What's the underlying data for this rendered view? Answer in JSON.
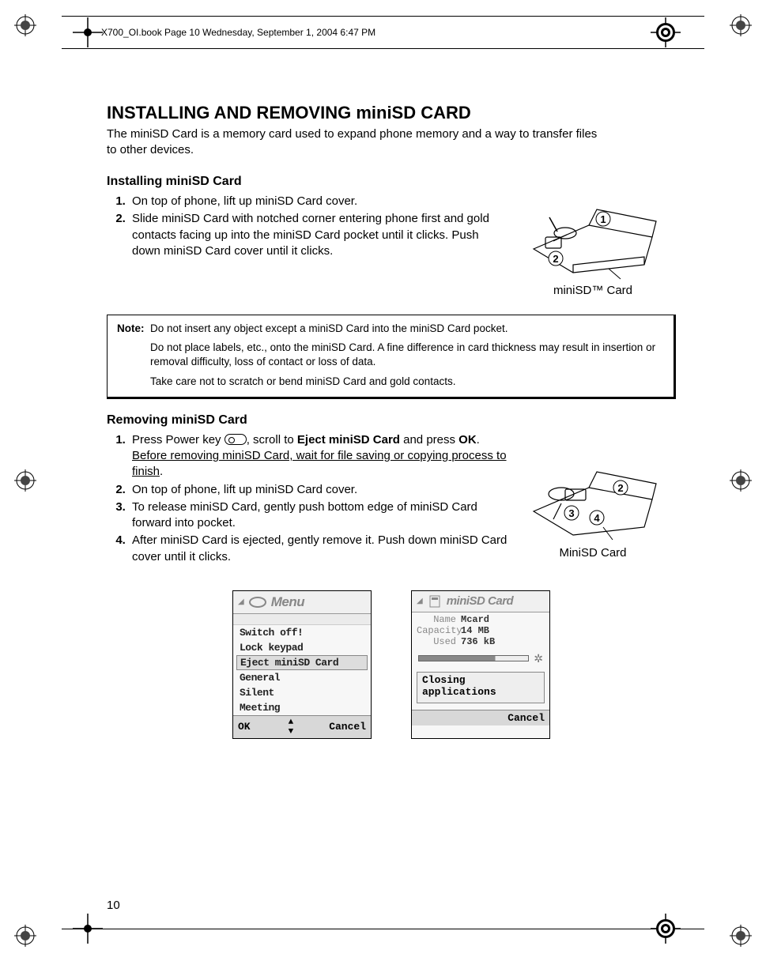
{
  "header": {
    "running_head": "X700_OI.book  Page 10  Wednesday, September 1, 2004  6:47 PM"
  },
  "page": {
    "number": "10",
    "title": "INSTALLING AND REMOVING miniSD CARD",
    "intro": "The miniSD Card is a memory card used to expand phone memory and a way to transfer files to other devices."
  },
  "install": {
    "heading": "Installing miniSD Card",
    "step1": "On top of phone, lift up miniSD Card cover.",
    "step2": "Slide miniSD Card with notched corner entering phone first and gold contacts facing up into the miniSD Card pocket until it clicks. Push down miniSD Card cover until it clicks.",
    "caption": "miniSD™ Card",
    "callouts": {
      "one": "1",
      "two": "2"
    }
  },
  "note": {
    "label": "Note",
    "line1": "Do not insert any object except a miniSD Card into the miniSD Card pocket.",
    "line2": "Do not place labels, etc., onto the miniSD Card. A fine difference in card thickness may result in insertion or removal difficulty, loss of contact or loss of data.",
    "line3": "Take care not to scratch or bend miniSD Card and gold contacts."
  },
  "remove": {
    "heading": "Removing miniSD Card",
    "step1_a": "Press Power key ",
    "step1_b": ", scroll to ",
    "step1_bold": "Eject miniSD Card",
    "step1_c": " and press ",
    "step1_ok": "OK",
    "step1_d": ". ",
    "step1_ul": "Before removing miniSD Card, wait for file saving or copying process to finish",
    "step1_e": ".",
    "step2": "On top of phone, lift up miniSD Card cover.",
    "step3": "To release miniSD Card, gently push bottom edge of miniSD Card forward into pocket.",
    "step4": "After miniSD Card is ejected, gently remove it. Push down miniSD Card cover until it clicks.",
    "caption": "MiniSD Card",
    "callouts": {
      "two": "2",
      "three": "3",
      "four": "4"
    }
  },
  "screen1": {
    "title": "Menu",
    "items": [
      "Switch off!",
      "Lock keypad",
      "Eject miniSD Card",
      "General",
      "Silent",
      "Meeting"
    ],
    "selected_index": 2,
    "left_soft": "OK",
    "right_soft": "Cancel"
  },
  "screen2": {
    "title": "miniSD Card",
    "rows": {
      "name_label": "Name",
      "name_val": "Mcard",
      "cap_label": "Capacity",
      "cap_val": "14 MB",
      "used_label": "Used",
      "used_val": "736 kB"
    },
    "closing1": "Closing",
    "closing2": "applications",
    "right_soft": "Cancel"
  }
}
